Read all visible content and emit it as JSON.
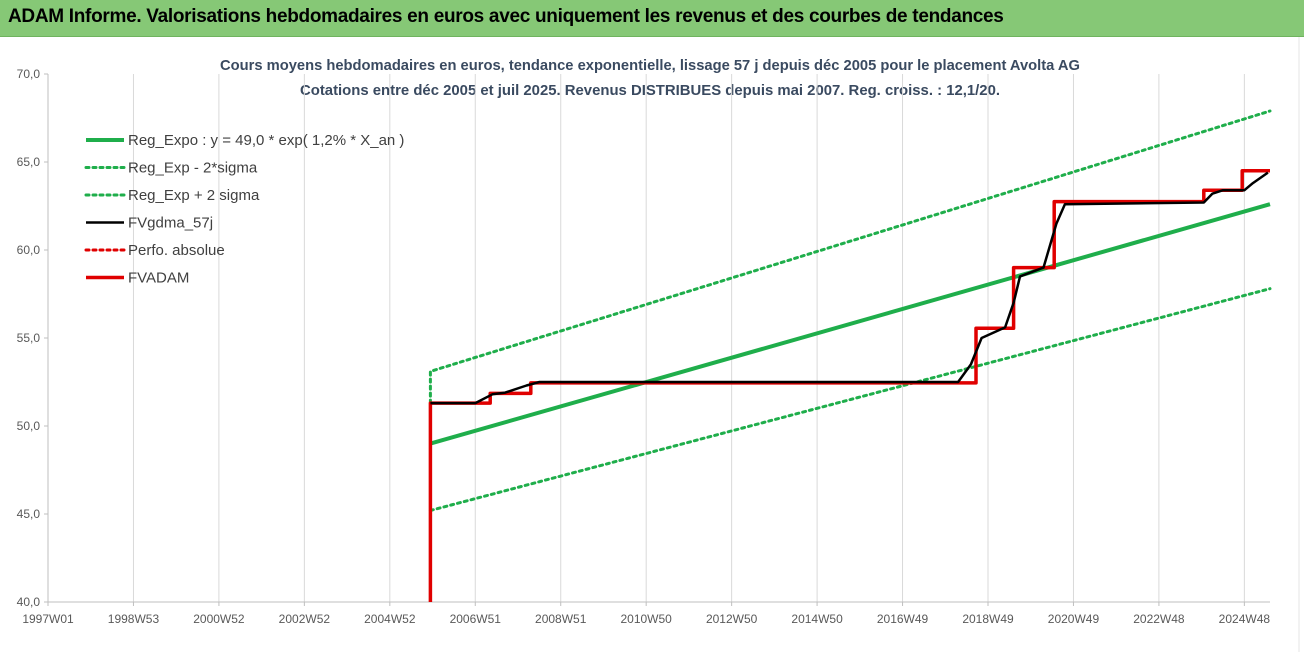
{
  "header": {
    "title": "ADAM Informe. Valorisations hebdomadaires en euros avec uniquement les revenus et des courbes de tendances"
  },
  "chart_data": {
    "type": "line",
    "title": "Cours moyens hebdomadaires en euros, tendance exponentielle, lissage 57 j depuis déc 2005 pour le placement Avolta AG",
    "subtitle": "Cotations entre déc 2005 et juil 2025. Revenus DISTRIBUES depuis mai 2007. Reg. croiss. : 12,1/20.",
    "xlabel": "",
    "ylabel": "",
    "x_range": [
      1997.0,
      2025.6
    ],
    "ylim": [
      40,
      70
    ],
    "y_ticks": [
      "40,0",
      "45,0",
      "50,0",
      "55,0",
      "60,0",
      "65,0",
      "70,0"
    ],
    "y_tick_values": [
      40,
      45,
      50,
      55,
      60,
      65,
      70
    ],
    "x_tick_labels": [
      "1997W01",
      "1998W53",
      "2000W52",
      "2002W52",
      "2004W52",
      "2006W51",
      "2008W51",
      "2010W50",
      "2012W50",
      "2014W50",
      "2016W49",
      "2018W49",
      "2020W49",
      "2022W48",
      "2024W48"
    ],
    "x_tick_values": [
      1997.0,
      1999.0,
      2001.0,
      2003.0,
      2005.0,
      2007.0,
      2009.0,
      2011.0,
      2013.0,
      2015.0,
      2017.0,
      2019.0,
      2021.0,
      2023.0,
      2025.0
    ],
    "grid": "vertical",
    "legend_position": "top-left",
    "series": [
      {
        "name": "Reg_Expo : y = 49,0 * exp( 1,2% *  X_an )",
        "color": "#1fae4b",
        "style": "solid",
        "x": [
          2005.95,
          2025.6
        ],
        "y": [
          49.0,
          62.6
        ]
      },
      {
        "name": "Reg_Exp - 2*sigma",
        "color": "#1fae4b",
        "style": "dotted",
        "x": [
          2005.95,
          2025.6
        ],
        "y": [
          45.2,
          57.8
        ]
      },
      {
        "name": "Reg_Exp + 2 sigma",
        "color": "#1fae4b",
        "style": "dotted",
        "x": [
          2005.95,
          2005.95,
          2025.6
        ],
        "y": [
          51.3,
          53.1,
          67.9
        ]
      },
      {
        "name": "FVgdma_57j",
        "color": "#000000",
        "style": "solid",
        "x": [
          2005.95,
          2007.0,
          2007.4,
          2007.7,
          2008.2,
          2008.5,
          2018.3,
          2018.6,
          2018.85,
          2019.4,
          2019.6,
          2019.75,
          2020.3,
          2020.6,
          2020.8,
          2024.05,
          2024.25,
          2024.5,
          2025.0,
          2025.2,
          2025.55
        ],
        "y": [
          51.3,
          51.3,
          51.8,
          51.9,
          52.3,
          52.5,
          52.5,
          53.5,
          55.0,
          55.6,
          57.0,
          58.5,
          59.0,
          61.5,
          62.6,
          62.7,
          63.2,
          63.4,
          63.4,
          63.8,
          64.4
        ]
      },
      {
        "name": "Perfo. absolue",
        "color": "#e00000",
        "style": "dotted",
        "x": [],
        "y": []
      },
      {
        "name": "FVADAM",
        "color": "#e00000",
        "style": "solid",
        "x": [
          2005.95,
          2005.95,
          2007.35,
          2007.35,
          2008.3,
          2008.3,
          2018.72,
          2018.72,
          2019.6,
          2019.6,
          2020.55,
          2020.55,
          2024.05,
          2024.05,
          2024.95,
          2024.95,
          2025.6
        ],
        "y": [
          40.0,
          51.3,
          51.3,
          51.85,
          51.85,
          52.45,
          52.45,
          55.55,
          55.55,
          59.0,
          59.0,
          62.75,
          62.75,
          63.4,
          63.4,
          64.5,
          64.5
        ]
      }
    ]
  }
}
